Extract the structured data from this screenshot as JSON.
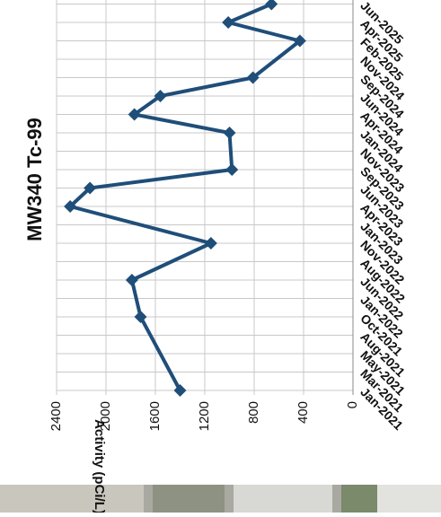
{
  "chart_data": {
    "type": "line",
    "title": "MW340 Tc-99",
    "y_label": "Activity (pCi/L)",
    "categories": [
      "Jan-2021",
      "Mar-2021",
      "May-2021",
      "Aug-2021",
      "Oct-2021",
      "Jan-2022",
      "Jun-2022",
      "Aug-2022",
      "Nov-2022",
      "Jan-2023",
      "Apr-2023",
      "Jun-2023",
      "Sep-2023",
      "Nov-2023",
      "Jan-2024",
      "Apr-2024",
      "Jun-2024",
      "Sep-2024",
      "Nov-2024",
      "Feb-2025",
      "Apr-2025",
      "Jun-2025"
    ],
    "series": [
      {
        "color": "#1f4e79",
        "values": [
          1400,
          null,
          null,
          null,
          1720,
          null,
          1790,
          null,
          1150,
          null,
          2290,
          2130,
          980,
          null,
          1000,
          1770,
          1560,
          810,
          null,
          430,
          1010,
          660
        ]
      }
    ],
    "ylim": [
      0,
      2400
    ],
    "yticks": [
      0,
      400,
      800,
      1200,
      1600,
      2000,
      2400
    ],
    "grid": true
  }
}
